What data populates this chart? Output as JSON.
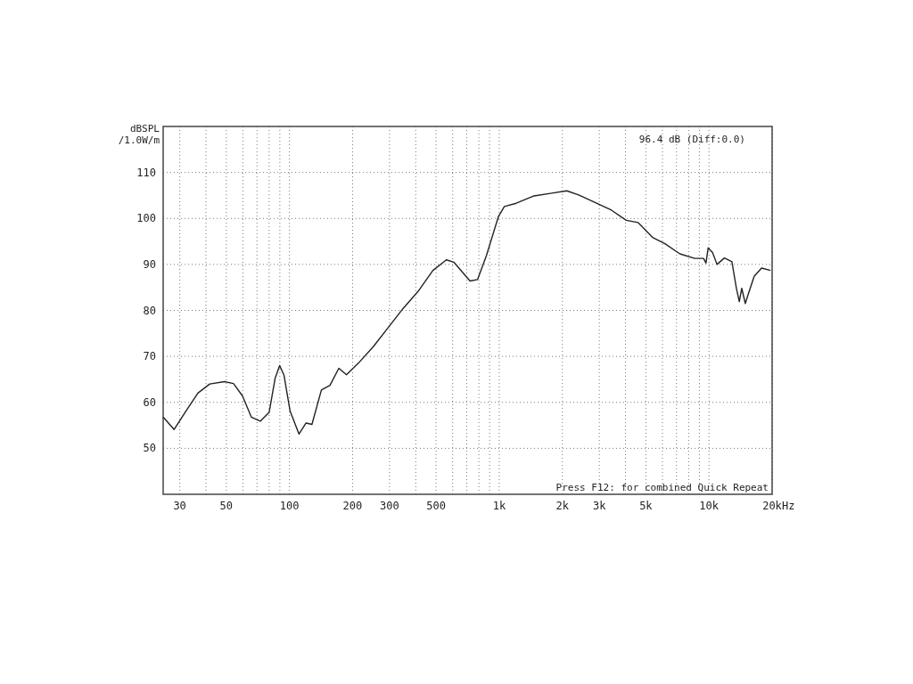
{
  "chart_data": {
    "type": "line",
    "ylabel": "dBSPL /1.0W/m",
    "log": "x",
    "grid": true,
    "line_style": "solid",
    "marker": "none",
    "xlim": [
      25,
      20000
    ],
    "ylim": [
      40,
      120
    ],
    "xticks": [
      {
        "value": 30,
        "label": "30"
      },
      {
        "value": 40,
        "label": null
      },
      {
        "value": 50,
        "label": "50"
      },
      {
        "value": 60,
        "label": null
      },
      {
        "value": 70,
        "label": null
      },
      {
        "value": 80,
        "label": null
      },
      {
        "value": 90,
        "label": null
      },
      {
        "value": 100,
        "label": "100"
      },
      {
        "value": 200,
        "label": "200"
      },
      {
        "value": 300,
        "label": "300"
      },
      {
        "value": 400,
        "label": null
      },
      {
        "value": 500,
        "label": "500"
      },
      {
        "value": 600,
        "label": null
      },
      {
        "value": 700,
        "label": null
      },
      {
        "value": 800,
        "label": null
      },
      {
        "value": 900,
        "label": null
      },
      {
        "value": 1000,
        "label": "1k"
      },
      {
        "value": 2000,
        "label": "2k"
      },
      {
        "value": 3000,
        "label": "3k"
      },
      {
        "value": 4000,
        "label": null
      },
      {
        "value": 5000,
        "label": "5k"
      },
      {
        "value": 6000,
        "label": null
      },
      {
        "value": 7000,
        "label": null
      },
      {
        "value": 8000,
        "label": null
      },
      {
        "value": 9000,
        "label": null
      },
      {
        "value": 10000,
        "label": "10k"
      },
      {
        "value": 20000,
        "label": "20k"
      }
    ],
    "xlabel": "Hz",
    "yticks": [
      50,
      60,
      70,
      80,
      90,
      100,
      110
    ],
    "annotations": [
      "96.4 dB (Diff:0.0)",
      "Press F12: for combined Quick Repeat"
    ],
    "series": [
      {
        "color": "#222222",
        "x": [
          25,
          28.2,
          32.1,
          36.6,
          41.7,
          49.1,
          54.1,
          59.7,
          65.8,
          72.6,
          80,
          85.5,
          89.8,
          94.2,
          100.7,
          111,
          120,
          128,
          142,
          156,
          172,
          187,
          213,
          251,
          296,
          348,
          410,
          483,
          560,
          607,
          726,
          788,
          869,
          991,
          1058,
          1205,
          1466,
          1782,
          2099,
          2393,
          2911,
          3428,
          4034,
          4597,
          5410,
          6168,
          7260,
          8549,
          9424,
          9676,
          9910,
          10400,
          10920,
          11850,
          12860,
          13510,
          13950,
          14330,
          14900,
          15380,
          16420,
          17810,
          19660
        ],
        "values": [
          56.8,
          54.1,
          58.1,
          62.0,
          64.0,
          64.5,
          64.1,
          61.4,
          56.8,
          55.9,
          57.8,
          65.3,
          68.0,
          65.9,
          58.1,
          53.1,
          55.5,
          55.2,
          62.7,
          63.7,
          67.4,
          66.0,
          68.5,
          72.1,
          76.3,
          80.4,
          84.1,
          88.7,
          91.0,
          90.5,
          86.4,
          86.7,
          91.9,
          100.4,
          102.6,
          103.3,
          104.9,
          105.5,
          106.0,
          105.1,
          103.3,
          101.8,
          99.6,
          99.1,
          95.8,
          94.5,
          92.3,
          91.3,
          91.3,
          90.3,
          93.6,
          92.6,
          90.0,
          91.4,
          90.6,
          84.8,
          81.9,
          84.8,
          81.5,
          83.5,
          87.4,
          89.2,
          88.7
        ]
      }
    ]
  }
}
